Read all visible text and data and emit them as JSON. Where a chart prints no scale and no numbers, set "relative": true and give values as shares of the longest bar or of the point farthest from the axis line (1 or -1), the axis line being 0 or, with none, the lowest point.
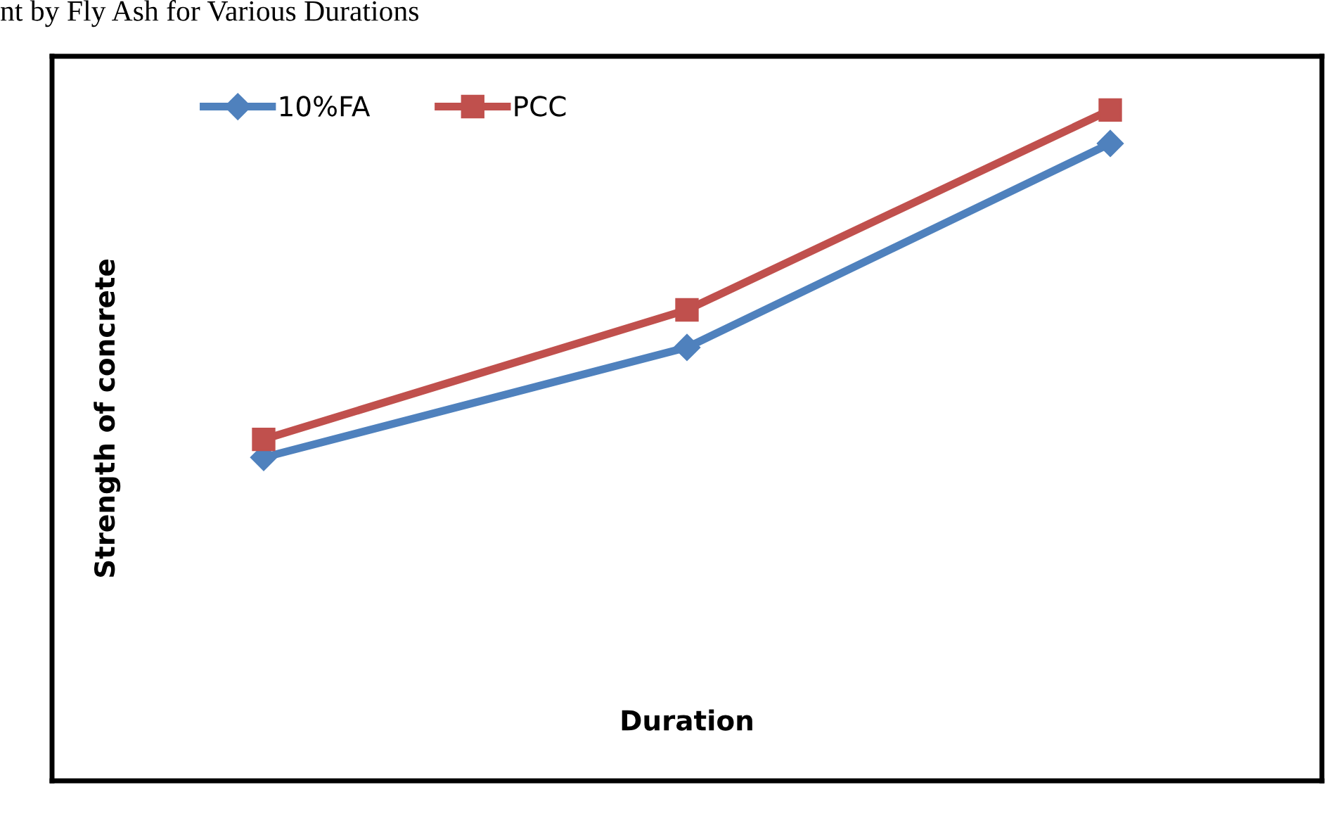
{
  "chart_data": {
    "type": "line",
    "title": "nt by Fly Ash for Various Durations",
    "xlabel": "Duration",
    "ylabel": "Strength of concrete",
    "relative": true,
    "categories": [
      null,
      null,
      null
    ],
    "series": [
      {
        "name": "10%FA",
        "color": "#4f81bd",
        "marker": "diamond",
        "values": [
          0.482,
          0.646,
          0.95
        ]
      },
      {
        "name": "PCC",
        "color": "#c0504d",
        "marker": "square",
        "values": [
          0.509,
          0.702,
          1.0
        ]
      }
    ],
    "legend": "top left",
    "grid": false,
    "line_style": "solid"
  }
}
